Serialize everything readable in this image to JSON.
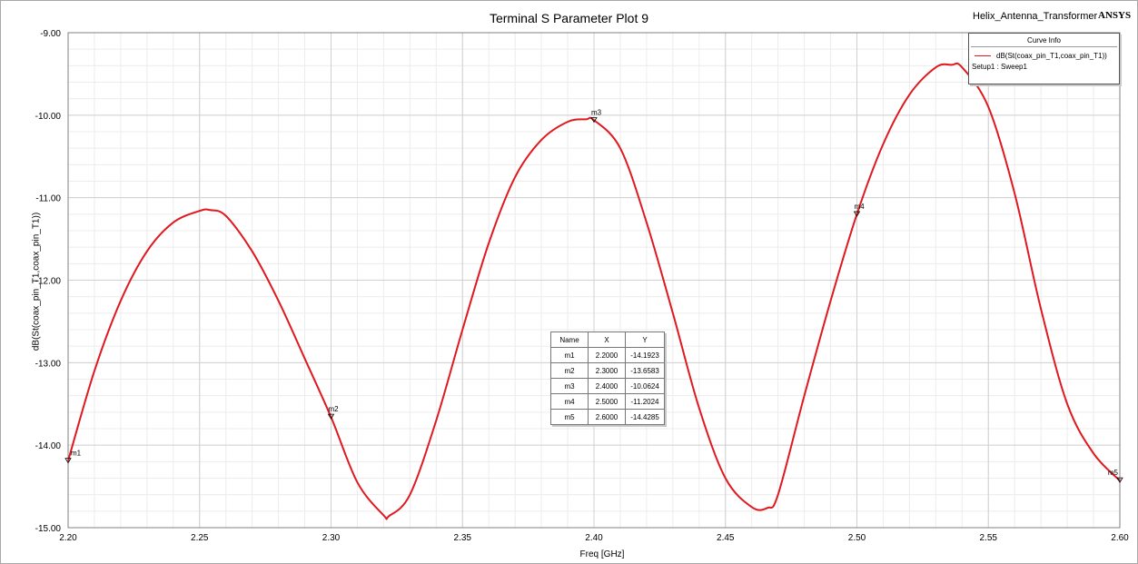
{
  "header": {
    "title": "Terminal S Parameter Plot 9",
    "project": "Helix_Antenna_Transformer",
    "brand": "ANSYS"
  },
  "legend": {
    "title": "Curve Info",
    "entry": "dB(St(coax_pin_T1,coax_pin_T1))",
    "setup": "Setup1 : Sweep1"
  },
  "marker_table": {
    "headers": [
      "Name",
      "X",
      "Y"
    ],
    "rows": [
      [
        "m1",
        "2.2000",
        "-14.1923"
      ],
      [
        "m2",
        "2.3000",
        "-13.6583"
      ],
      [
        "m3",
        "2.4000",
        "-10.0624"
      ],
      [
        "m4",
        "2.5000",
        "-11.2024"
      ],
      [
        "m5",
        "2.6000",
        "-14.4285"
      ]
    ]
  },
  "colors": {
    "trace": "#e0181f",
    "grid_major": "#d0d0d0",
    "grid_minor": "#ececec"
  },
  "chart_data": {
    "type": "line",
    "title": "Terminal S Parameter Plot 9",
    "xlabel": "Freq [GHz]",
    "ylabel": "dB(St(coax_pin_T1,coax_pin_T1))",
    "xlim": [
      2.2,
      2.6
    ],
    "ylim": [
      -15.0,
      -9.0
    ],
    "x_ticks": [
      "2.20",
      "2.25",
      "2.30",
      "2.35",
      "2.40",
      "2.45",
      "2.50",
      "2.55",
      "2.60"
    ],
    "y_ticks": [
      "-9.00",
      "-10.00",
      "-11.00",
      "-12.00",
      "-13.00",
      "-14.00",
      "-15.00"
    ],
    "grid": true,
    "legend_position": "top-right",
    "series": [
      {
        "name": "dB(St(coax_pin_T1,coax_pin_T1))",
        "x": [
          2.2,
          2.21,
          2.22,
          2.23,
          2.24,
          2.25,
          2.254,
          2.26,
          2.27,
          2.28,
          2.29,
          2.3,
          2.31,
          2.32,
          2.322,
          2.33,
          2.34,
          2.35,
          2.36,
          2.37,
          2.38,
          2.39,
          2.397,
          2.4,
          2.41,
          2.42,
          2.43,
          2.44,
          2.45,
          2.46,
          2.466,
          2.47,
          2.48,
          2.49,
          2.5,
          2.51,
          2.52,
          2.53,
          2.536,
          2.54,
          2.55,
          2.56,
          2.57,
          2.58,
          2.59,
          2.6
        ],
        "y": [
          -14.19,
          -13.1,
          -12.25,
          -11.65,
          -11.3,
          -11.16,
          -11.15,
          -11.22,
          -11.65,
          -12.25,
          -12.95,
          -13.66,
          -14.45,
          -14.85,
          -14.86,
          -14.6,
          -13.7,
          -12.6,
          -11.55,
          -10.75,
          -10.3,
          -10.08,
          -10.05,
          -10.06,
          -10.4,
          -11.3,
          -12.4,
          -13.55,
          -14.4,
          -14.75,
          -14.76,
          -14.6,
          -13.4,
          -12.25,
          -11.2,
          -10.35,
          -9.75,
          -9.42,
          -9.39,
          -9.42,
          -9.9,
          -10.95,
          -12.35,
          -13.5,
          -14.1,
          -14.43
        ]
      }
    ],
    "markers": [
      {
        "name": "m1",
        "x": 2.2,
        "y": -14.1923
      },
      {
        "name": "m2",
        "x": 2.3,
        "y": -13.6583
      },
      {
        "name": "m3",
        "x": 2.4,
        "y": -10.0624
      },
      {
        "name": "m4",
        "x": 2.5,
        "y": -11.2024
      },
      {
        "name": "m5",
        "x": 2.6,
        "y": -14.4285
      }
    ]
  }
}
